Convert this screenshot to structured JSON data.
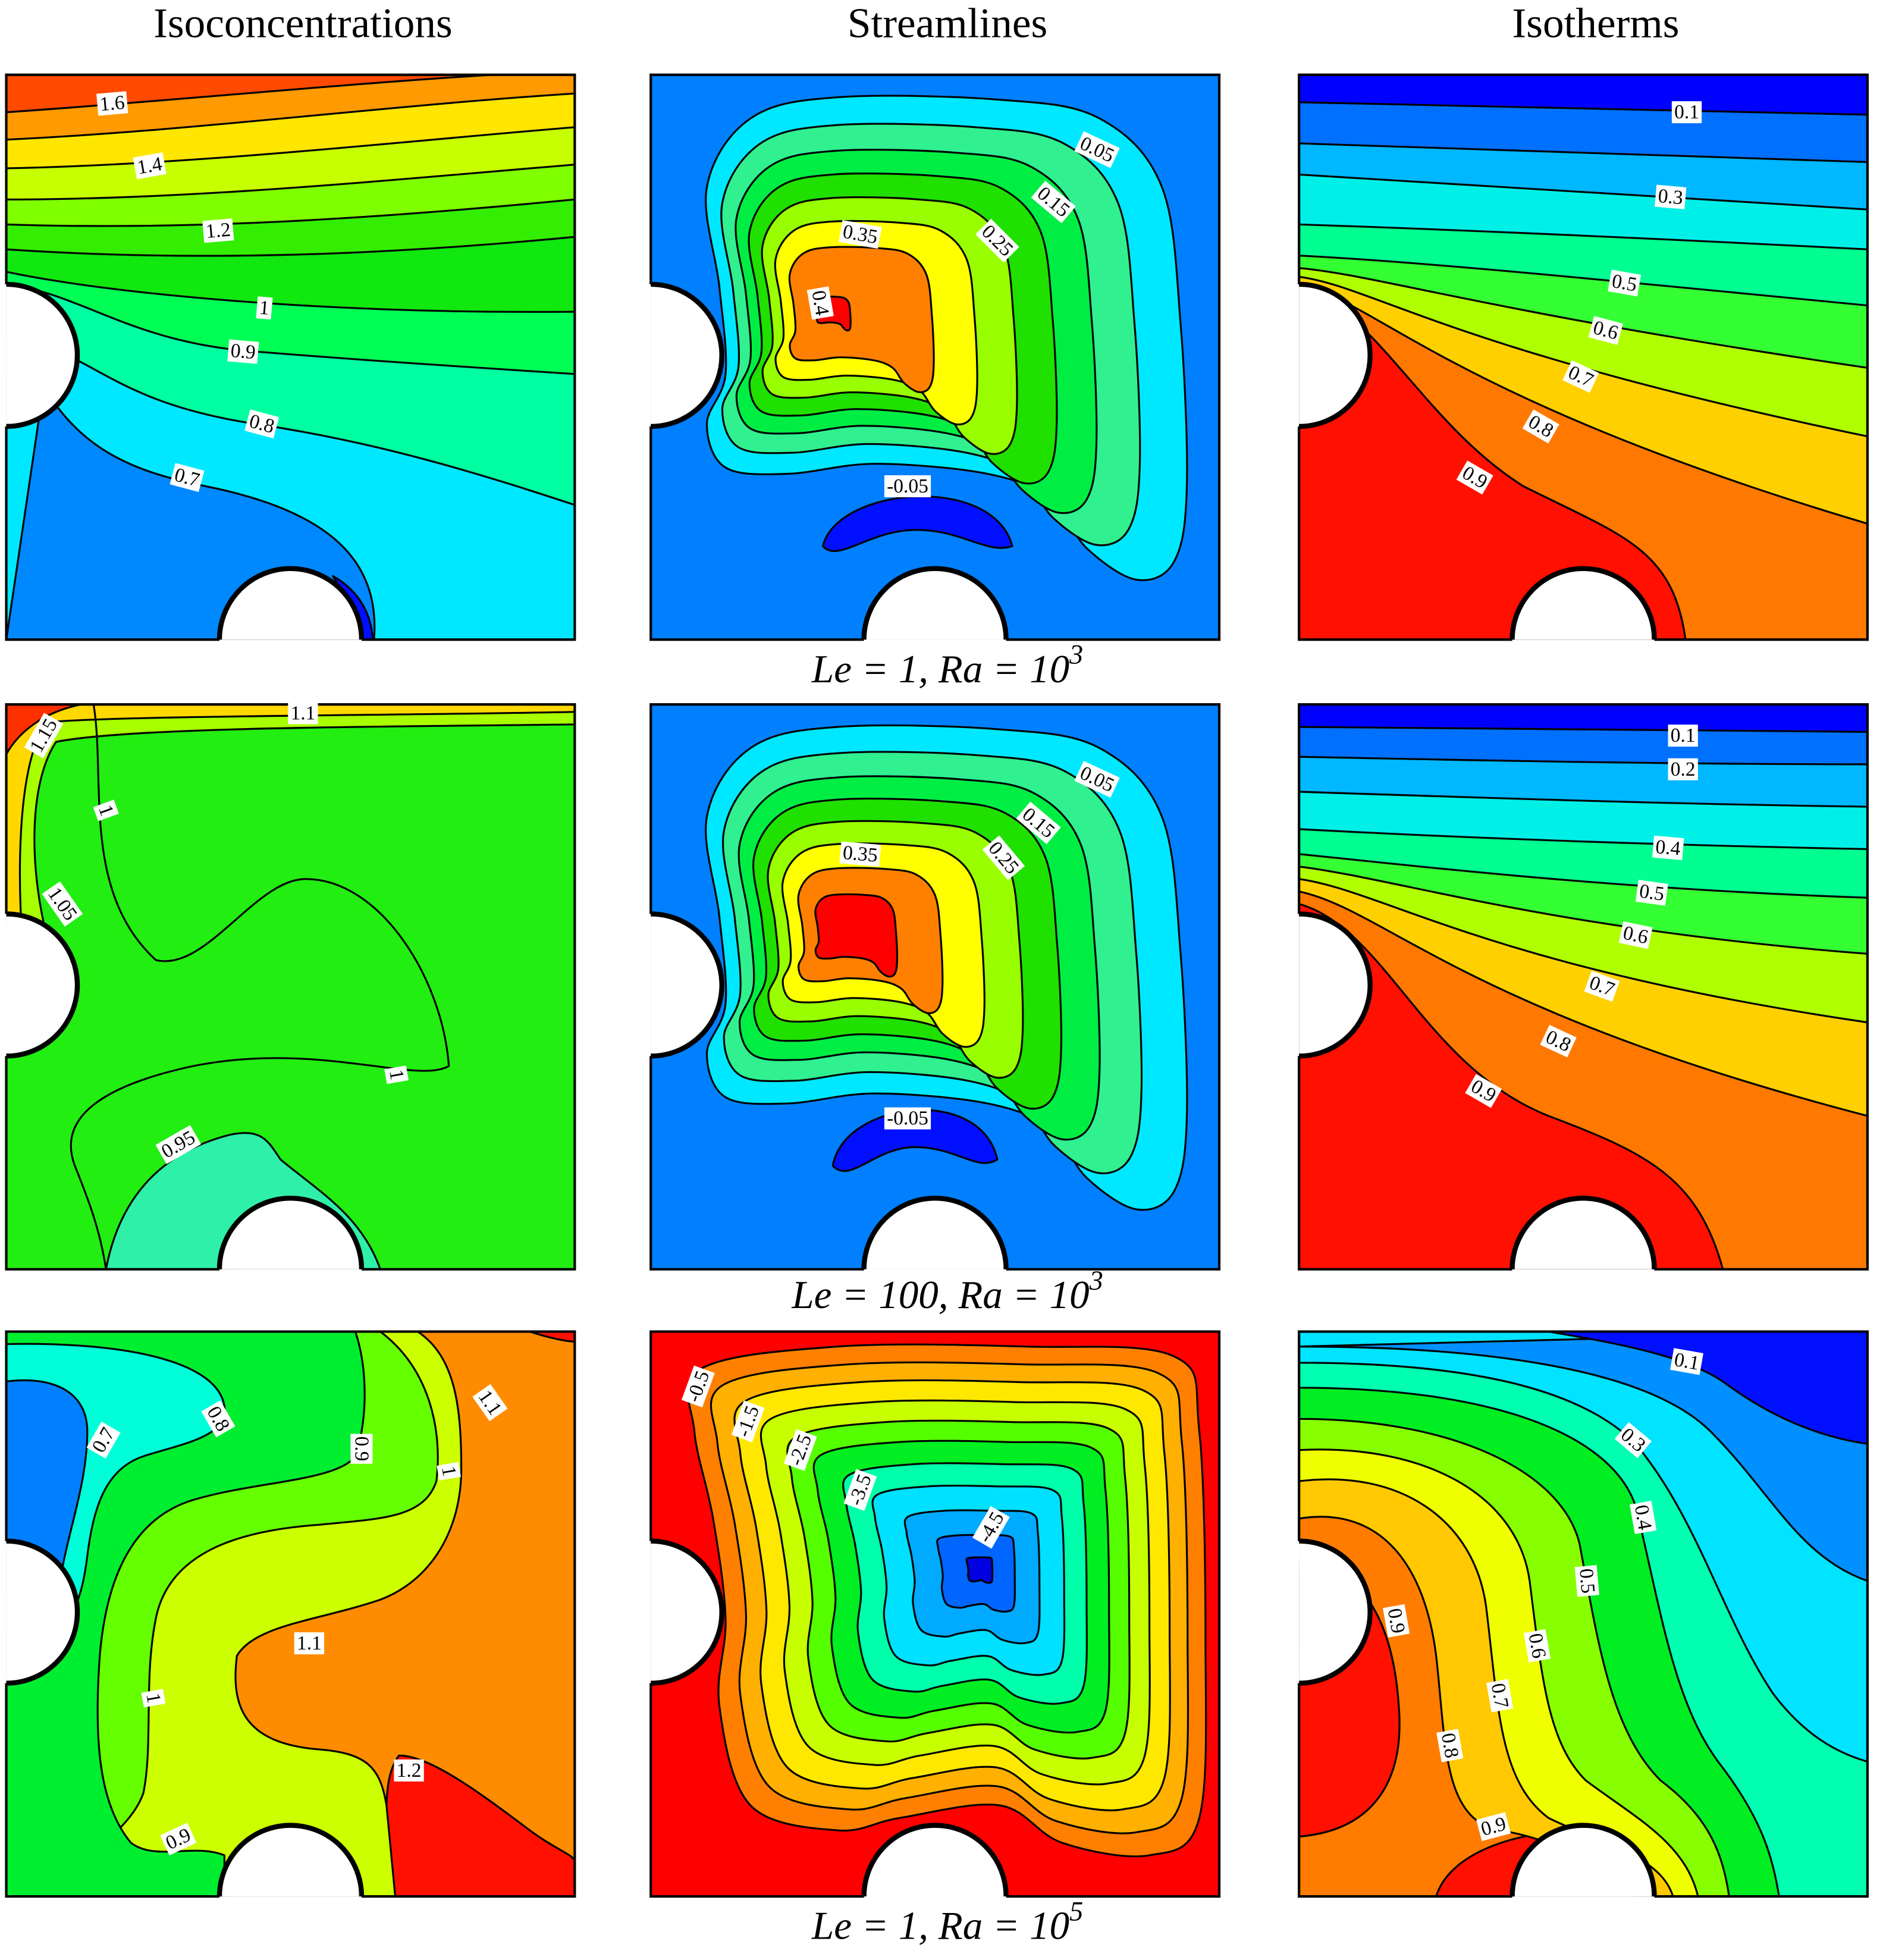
{
  "columns": [
    "Isoconcentrations",
    "Streamlines",
    "Isotherms"
  ],
  "rows": [
    {
      "caption": {
        "text": "Le = 1, Ra = 10",
        "exponent": "3"
      },
      "panels": [
        {
          "labels": [
            1.6,
            1.4,
            1.2,
            1,
            0.9,
            0.8,
            0.7
          ]
        },
        {
          "labels": [
            0.05,
            0.15,
            0.25,
            0.35,
            0.4,
            -0.05
          ]
        },
        {
          "labels": [
            0.1,
            0.3,
            0.5,
            0.6,
            0.7,
            0.8,
            0.9
          ]
        }
      ]
    },
    {
      "caption": {
        "text": "Le = 100, Ra = 10",
        "exponent": "3"
      },
      "panels": [
        {
          "labels": [
            1.15,
            1.1,
            1,
            1.05,
            1,
            0.95
          ]
        },
        {
          "labels": [
            0.05,
            0.15,
            0.25,
            0.35,
            -0.05
          ]
        },
        {
          "labels": [
            0.1,
            0.2,
            0.4,
            0.5,
            0.6,
            0.7,
            0.8,
            0.9
          ]
        }
      ]
    },
    {
      "caption": {
        "text": "Le = 1, Ra = 10",
        "exponent": "5"
      },
      "panels": [
        {
          "labels": [
            0.7,
            0.8,
            0.9,
            1.1,
            1,
            1.1,
            1,
            1.2,
            0.9
          ]
        },
        {
          "labels": [
            -0.5,
            -1.5,
            -2.5,
            -3.5,
            -4.5
          ]
        },
        {
          "labels": [
            0.1,
            0.3,
            0.4,
            0.5,
            0.6,
            0.7,
            0.8,
            0.9,
            0.9
          ]
        }
      ]
    }
  ]
}
